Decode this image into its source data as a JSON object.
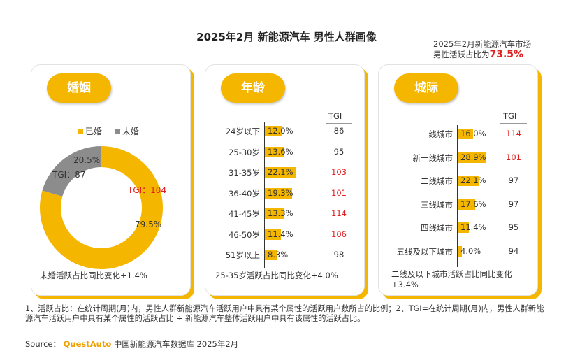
{
  "title": "2025年2月 新能源汽车 男性人群画像",
  "callout": {
    "line1": "2025年2月新能源汽车市场",
    "line2_prefix": "男性活跃占比为",
    "value": "73.5%"
  },
  "marriage": {
    "badge": "婚姻",
    "legend": [
      {
        "label": "已婚",
        "color": "#f5b600"
      },
      {
        "label": "未婚",
        "color": "#8c8c8c"
      }
    ],
    "note": "未婚活跃占比同比变化+1.4%"
  },
  "age": {
    "badge": "年龄",
    "tgi_header": "TGI",
    "note": "25-35岁活跃占比同比变化+4.0%"
  },
  "city": {
    "badge": "城际",
    "tgi_header": "TGI",
    "note": "二线及以下城市活跃占比同比变化+3.4%"
  },
  "chart_data": [
    {
      "type": "pie",
      "categories": [
        "已婚",
        "未婚"
      ],
      "values": [
        79.5,
        20.5
      ],
      "value_labels": [
        "79.5%",
        "20.5%"
      ],
      "tgi": [
        104,
        87
      ],
      "tgi_labels": [
        "TGI：104",
        "TGI：87"
      ],
      "colors": [
        "#f5b600",
        "#8c8c8c"
      ]
    },
    {
      "type": "bar",
      "categories": [
        "24岁以下",
        "25-30岁",
        "31-35岁",
        "36-40岁",
        "41-45岁",
        "46-50岁",
        "51岁以上"
      ],
      "values": [
        12.0,
        13.6,
        22.1,
        19.3,
        13.3,
        11.4,
        8.3
      ],
      "value_labels": [
        "12.0%",
        "13.6%",
        "22.1%",
        "19.3%",
        "13.3%",
        "11.4%",
        "8.3%"
      ],
      "tgi": [
        86,
        95,
        103,
        101,
        114,
        106,
        98
      ],
      "tgi_highlight": [
        false,
        false,
        true,
        true,
        true,
        true,
        false
      ]
    },
    {
      "type": "bar",
      "categories": [
        "一线城市",
        "新一线城市",
        "二线城市",
        "三线城市",
        "四线城市",
        "五线及以下城市"
      ],
      "values": [
        16.0,
        28.9,
        22.1,
        17.6,
        11.4,
        4.0
      ],
      "value_labels": [
        "16.0%",
        "28.9%",
        "22.1%",
        "17.6%",
        "11.4%",
        "4.0%"
      ],
      "tgi": [
        114,
        101,
        97,
        97,
        95,
        94
      ],
      "tgi_highlight": [
        true,
        true,
        false,
        false,
        false,
        false
      ]
    }
  ],
  "footnote": "1、活跃占比：在统计周期(月)内，男性人群新能源汽车活跃用户中具有某个属性的活跃用户数所占的比例；2、TGI=在统计周期(月)内，男性人群新能源汽车活跃用户中具有某个属性的活跃占比 ÷ 新能源汽车整体活跃用户中具有该属性的活跃占比。",
  "source": {
    "prefix": "Source：",
    "brand": "QuestAuto",
    "suffix": "中国新能源汽车数据库 2025年2月"
  }
}
